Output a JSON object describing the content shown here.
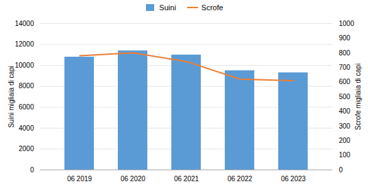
{
  "chart_data": {
    "type": "bar",
    "categories": [
      "06 2019",
      "06 2020",
      "06 2021",
      "06 2022",
      "06 2023"
    ],
    "series": [
      {
        "name": "Suini",
        "type": "bar",
        "color": "#5B9BD5",
        "values": [
          10800,
          11400,
          11000,
          9500,
          9300
        ]
      },
      {
        "name": "Scrofe",
        "type": "line",
        "color": "#ED7D31",
        "axis": "y2",
        "values": [
          780,
          800,
          740,
          620,
          610
        ]
      }
    ],
    "ylabel": "Suini migliaia di capi",
    "y2label": "Scrofe migliaia di capi",
    "ylim": [
      0,
      14000
    ],
    "yticks": [
      0,
      2000,
      4000,
      6000,
      8000,
      10000,
      12000,
      14000
    ],
    "y2lim": [
      0,
      1000
    ],
    "y2ticks": [
      0,
      100,
      200,
      300,
      400,
      500,
      600,
      700,
      800,
      900,
      1000
    ],
    "grid": true,
    "legend": "top"
  }
}
